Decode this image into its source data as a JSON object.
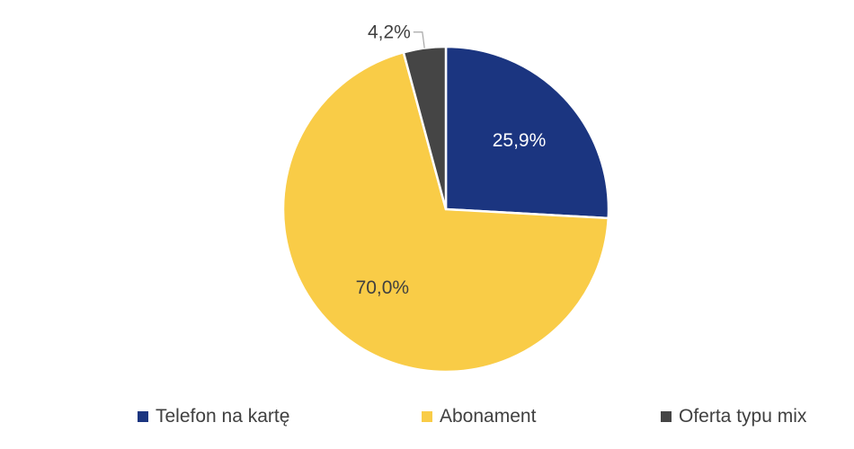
{
  "chart_data": {
    "type": "pie",
    "title": "",
    "start_angle_deg": 0,
    "direction": "clockwise",
    "slices": [
      {
        "label": "Telefon na kartę",
        "value": 25.9,
        "display": "25,9%",
        "color": "#1b3580",
        "label_color": "#ffffff"
      },
      {
        "label": "Abonament",
        "value": 70.0,
        "display": "70,0%",
        "color": "#f9cc47",
        "label_color": "#404040"
      },
      {
        "label": "Oferta typu mix",
        "value": 4.2,
        "display": "4,2%",
        "color": "#454545",
        "label_color": "#404040"
      }
    ],
    "legend": {
      "position": "bottom",
      "entries": [
        "Telefon na kartę",
        "Abonament",
        "Oferta typu mix"
      ]
    }
  }
}
